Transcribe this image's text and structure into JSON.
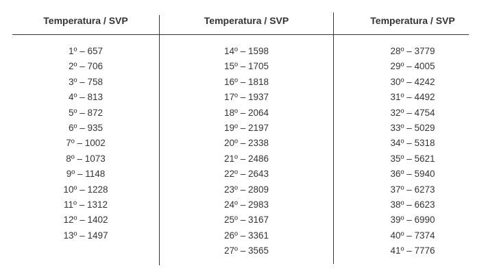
{
  "columns": [
    {
      "header": "Temperatura / SVP",
      "rows": [
        "1º – 657",
        "2º – 706",
        "3º – 758",
        "4º – 813",
        "5º – 872",
        "6º – 935",
        "7º – 1002",
        "8º – 1073",
        "9º – 1148",
        "10º – 1228",
        "11º – 1312",
        "12º – 1402",
        "13º – 1497"
      ]
    },
    {
      "header": "Temperatura / SVP",
      "rows": [
        "14º – 1598",
        "15º – 1705",
        "16º – 1818",
        "17º – 1937",
        "18º – 2064",
        "19º – 2197",
        "20º – 2338",
        "21º – 2486",
        "22º – 2643",
        "23º – 2809",
        "24º – 2983",
        "25º – 3167",
        "26º – 3361",
        "27º – 3565"
      ]
    },
    {
      "header": "Temperatura / SVP",
      "rows": [
        "28º – 3779",
        "29º – 4005",
        "30º – 4242",
        "31º – 4492",
        "32º – 4754",
        "33º – 5029",
        "34º – 5318",
        "35º – 5621",
        "36º – 5940",
        "37º – 6273",
        "38º – 6623",
        "39º – 6990",
        "40º – 7374",
        "41º – 7776"
      ]
    }
  ]
}
